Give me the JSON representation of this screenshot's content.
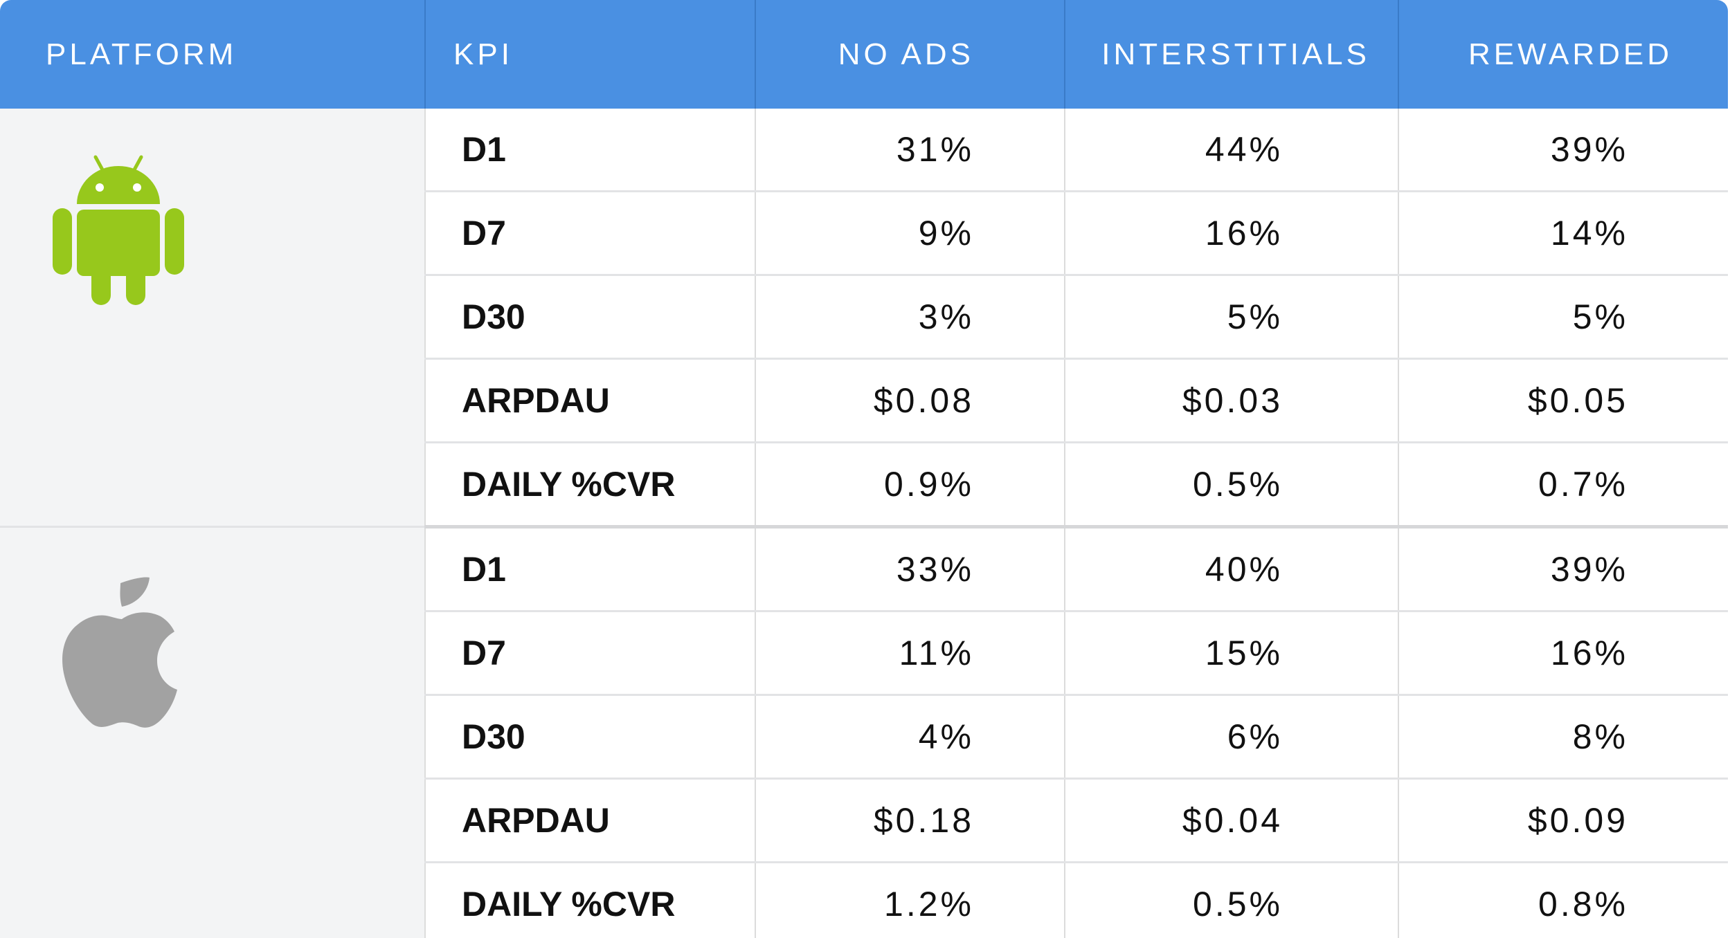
{
  "columns": [
    "PLATFORM",
    "KPI",
    "NO ADS",
    "INTERSTITIALS",
    "REWARDED"
  ],
  "colors": {
    "header_bg": "#4a90e2",
    "header_text": "#ffffff",
    "platform_bg": "#f3f4f5",
    "android_green": "#97c81c",
    "apple_gray": "#a2a2a2"
  },
  "groups": [
    {
      "platform_icon": "android-icon",
      "rows": [
        {
          "kpi": "D1",
          "no_ads": "31%",
          "interstitials": "44%",
          "rewarded": "39%"
        },
        {
          "kpi": "D7",
          "no_ads": "9%",
          "interstitials": "16%",
          "rewarded": "14%"
        },
        {
          "kpi": "D30",
          "no_ads": "3%",
          "interstitials": "5%",
          "rewarded": "5%"
        },
        {
          "kpi": "ARPDAU",
          "no_ads": "$0.08",
          "interstitials": "$0.03",
          "rewarded": "$0.05"
        },
        {
          "kpi": "DAILY %CVR",
          "no_ads": "0.9%",
          "interstitials": "0.5%",
          "rewarded": "0.7%"
        }
      ]
    },
    {
      "platform_icon": "apple-icon",
      "rows": [
        {
          "kpi": "D1",
          "no_ads": "33%",
          "interstitials": "40%",
          "rewarded": "39%"
        },
        {
          "kpi": "D7",
          "no_ads": "11%",
          "interstitials": "15%",
          "rewarded": "16%"
        },
        {
          "kpi": "D30",
          "no_ads": "4%",
          "interstitials": "6%",
          "rewarded": "8%"
        },
        {
          "kpi": "ARPDAU",
          "no_ads": "$0.18",
          "interstitials": "$0.04",
          "rewarded": "$0.09"
        },
        {
          "kpi": "DAILY %CVR",
          "no_ads": "1.2%",
          "interstitials": "0.5%",
          "rewarded": "0.8%"
        }
      ]
    }
  ]
}
